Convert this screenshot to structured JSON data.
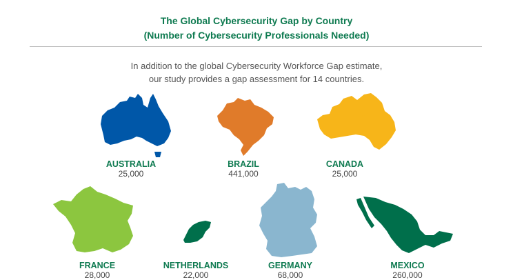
{
  "header": {
    "title_line1": "The Global Cybersecurity Gap by Country",
    "title_line2": "(Number of Cybersecurity Professionals Needed)"
  },
  "intro": {
    "line1": "In addition to the global Cybersecurity Workforce Gap estimate,",
    "line2": "our study provides a gap assessment for 14 countries."
  },
  "countries": [
    {
      "name": "AUSTRALIA",
      "value": "25,000",
      "color": "#0057a8"
    },
    {
      "name": "BRAZIL",
      "value": "441,000",
      "color": "#e07b2a"
    },
    {
      "name": "CANADA",
      "value": "25,000",
      "color": "#f7b519"
    },
    {
      "name": "FRANCE",
      "value": "28,000",
      "color": "#8cc63f"
    },
    {
      "name": "NETHERLANDS",
      "value": "22,000",
      "color": "#006f4b"
    },
    {
      "name": "GERMANY",
      "value": "68,000",
      "color": "#8ab6cf"
    },
    {
      "name": "MEXICO",
      "value": "260,000",
      "color": "#006f4b"
    }
  ]
}
